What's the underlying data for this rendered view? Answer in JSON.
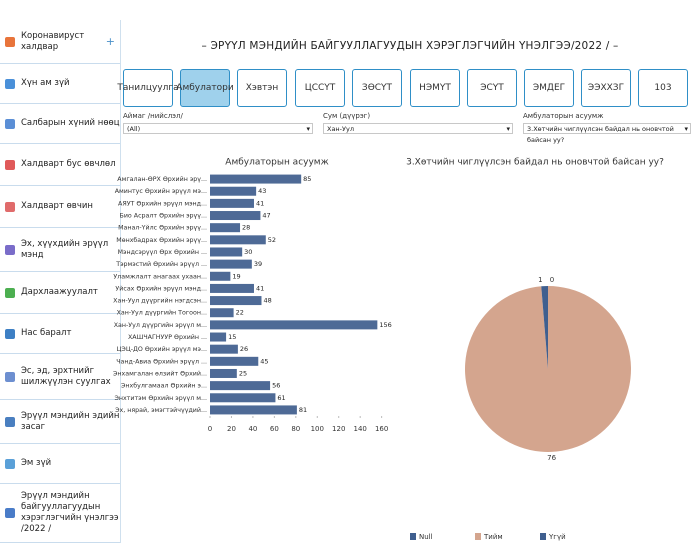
{
  "sidebar": [
    "Коронавируст халдвар",
    "Хүн ам зүй",
    "Салбарын хүний нөөц",
    "Халдварт бус өвчлөл",
    "Халдварт өвчин",
    "Эх, хүүхдийн эрүүл мэнд",
    "Дархлаажуулалт",
    "Нас баралт",
    "Эс, эд, эрхтнийг шилжүүлэн суулгах",
    "Эрүүл мэндийн эдийн засаг",
    "Эм зүй",
    "Эрүүл мэндийн байгууллагуудын хэрэглэгчийн үнэлгээ /2022 /"
  ],
  "title": "– ЭРҮҮЛ МЭНДИЙН БАЙГУУЛЛАГУУДЫН ХЭРЭГЛЭГЧИЙН ҮНЭЛГЭЭ/2022 / –",
  "tabs": [
    "Танилцуулга",
    "Амбулатори",
    "Хэвтэн",
    "ЦССҮТ",
    "ЗӨСҮТ",
    "НЭМҮТ",
    "ЭСҮТ",
    "ЭМДЕГ",
    "ЭЭХХЗГ",
    "103"
  ],
  "active_tab": 1,
  "filters": [
    {
      "label": "Аймаг /нийслэл/",
      "value": "(All)"
    },
    {
      "label": "Сум (дүүрэг)",
      "value": "Хан-Уул"
    },
    {
      "label": "Амбулаторын асуумж",
      "value": "3.Хөтчийн чиглүүлсэн байдал нь оновчтой байсан уу?"
    }
  ],
  "chart_data": [
    {
      "type": "hbar",
      "title": "Амбулаторын асуумж",
      "categories": [
        "Амгалан-ӨРХ Өрхийн эрү...",
        "Аминтус Өрхийн эрүүл мэ...",
        "АЯУТ Өрхийн эрүүл мэнд...",
        "Био Асралт Өрхийн эрүү...",
        "Манал-Үйлс Өрхийн эрүү...",
        "Мөнхбадрах Өрхийн эрүү...",
        "Мэндсэрүүл Өрх  Өрхийн ...",
        "Тэрмэстий Өрхийн эрүүл ...",
        "Уламжлалт анагаах ухаан...",
        "Уйсах Өрхийн эрүүл мэнд...",
        "Хан-Уул дүүргийн нэгдсэн...",
        "Хан-Уул дүүргийн Тогоон...",
        "Хан-Уул дүүргийн эрүүл м...",
        "ХАШЧАГНУУР Өрхийн ...",
        "ЦЭЦ-ДО Өрхийн эрүүл мэ...",
        "Чанд-Авиа Өрхийн эрүүл ...",
        "Энхамгалан өлзийт Өрхий...",
        "Энхбулгамаал Өрхийн э...",
        "Энхтитэм Өрхийн эрүүл м...",
        "Эх, нярай, эмэгтэйчүүдий..."
      ],
      "values": [
        85,
        43,
        41,
        47,
        28,
        52,
        30,
        39,
        19,
        41,
        48,
        22,
        156,
        15,
        26,
        45,
        25,
        56,
        61,
        81
      ],
      "color": "#4e6a96",
      "xlim": [
        0,
        165
      ],
      "xticks": [
        0,
        20,
        40,
        60,
        80,
        100,
        120,
        140,
        160
      ]
    },
    {
      "type": "pie",
      "title": "3.Хөтчийн чиглүүлсэн байдал нь оновчтой байсан уу?",
      "categories": [
        "Null",
        "Тийм",
        "Үгүй"
      ],
      "values": [
        0,
        76,
        1
      ],
      "colors": [
        "#3f5f8f",
        "#d4a58e",
        "#3f5f8f"
      ]
    }
  ]
}
